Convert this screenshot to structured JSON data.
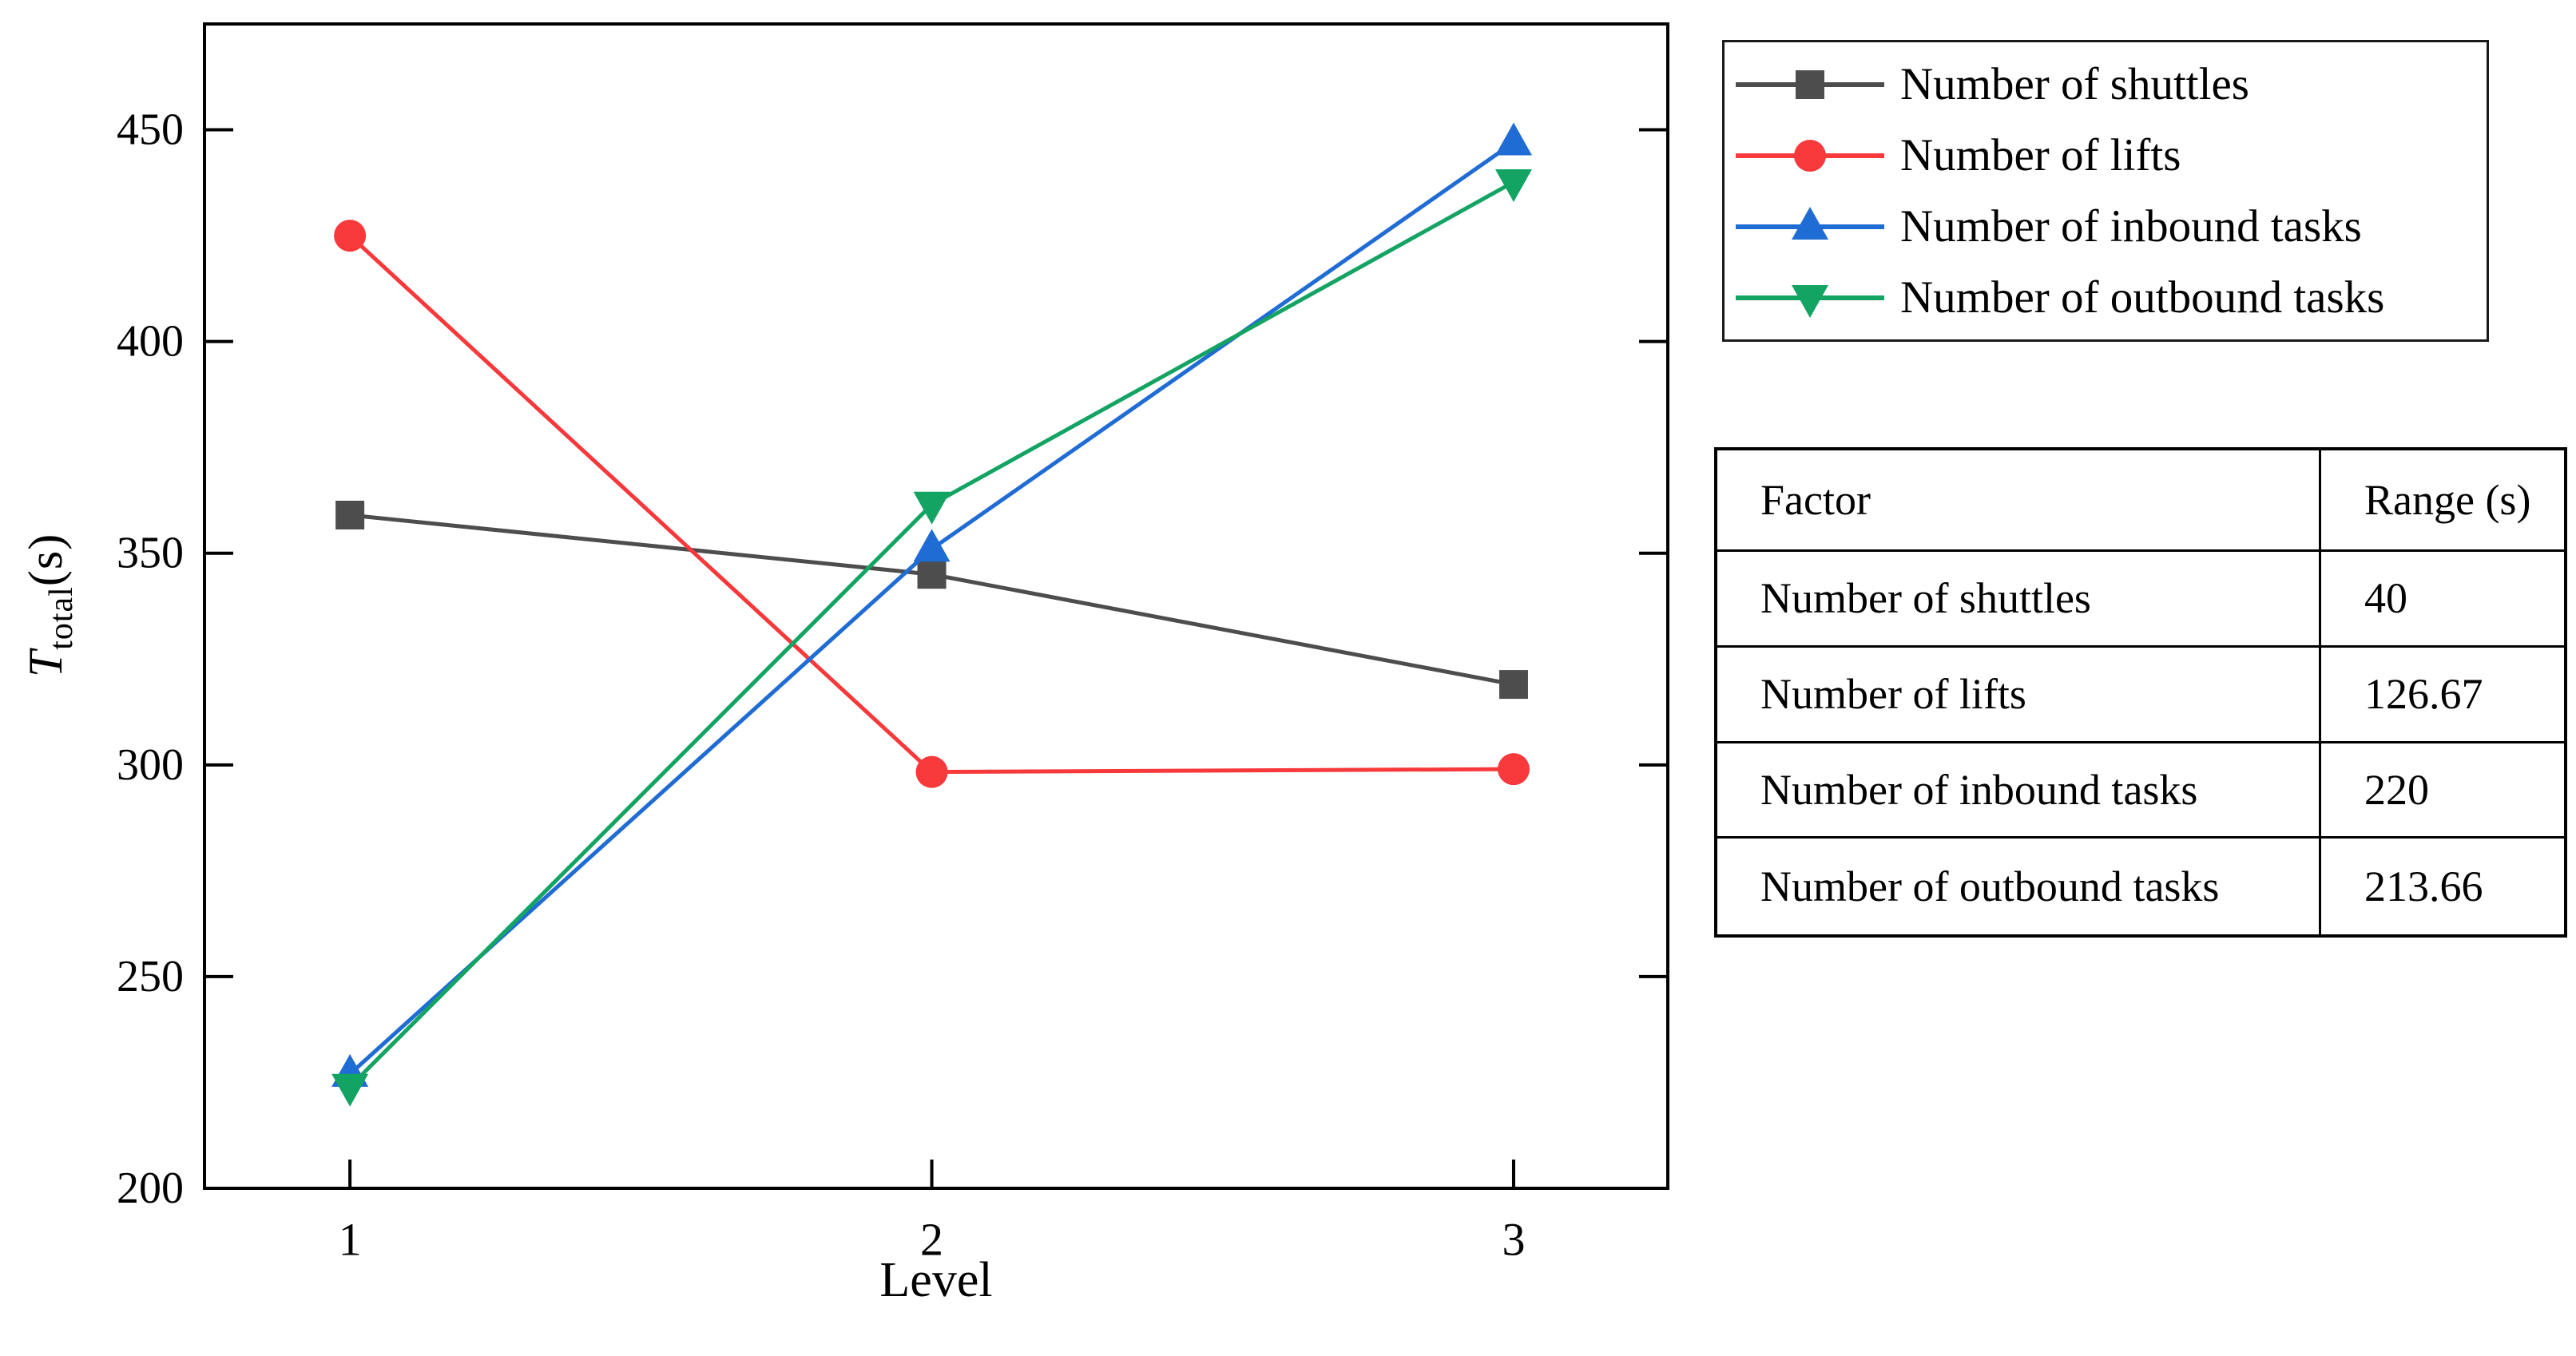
{
  "page": {
    "background": "#ffffff"
  },
  "chart_data": {
    "type": "line",
    "title": "",
    "xlabel": "Level",
    "ylabel": "T_total(s)",
    "ylabel_main": "T",
    "ylabel_sub": "total",
    "ylabel_unit": "(s)",
    "categories": [
      1,
      2,
      3
    ],
    "x_range": [
      0.75,
      3.265
    ],
    "ylim": [
      200,
      475
    ],
    "yticks": [
      200,
      250,
      300,
      350,
      400,
      450
    ],
    "grid": false,
    "legend_position": "outside-top-right",
    "frame_color": "#000000",
    "series": [
      {
        "name": "Number of shuttles",
        "color": "#4D4D4D",
        "marker": "square",
        "values": [
          359,
          345,
          319
        ]
      },
      {
        "name": "Number of lifts",
        "color": "#F8393B",
        "marker": "circle",
        "values": [
          425,
          298.33,
          299
        ]
      },
      {
        "name": "Number of inbound tasks",
        "color": "#1F6CD5",
        "marker": "triangle-up",
        "values": [
          227,
          351,
          447
        ]
      },
      {
        "name": "Number of outbound tasks",
        "color": "#13A463",
        "marker": "triangle-down",
        "values": [
          224,
          361.5,
          437.66
        ]
      }
    ]
  },
  "table": {
    "header": {
      "factor": "Factor",
      "range": "Range (s)"
    },
    "rows": [
      {
        "factor": "Number of shuttles",
        "range": "40"
      },
      {
        "factor": "Number of lifts",
        "range": "126.67"
      },
      {
        "factor": "Number of inbound tasks",
        "range": "220"
      },
      {
        "factor": "Number of outbound tasks",
        "range": "213.66"
      }
    ]
  }
}
